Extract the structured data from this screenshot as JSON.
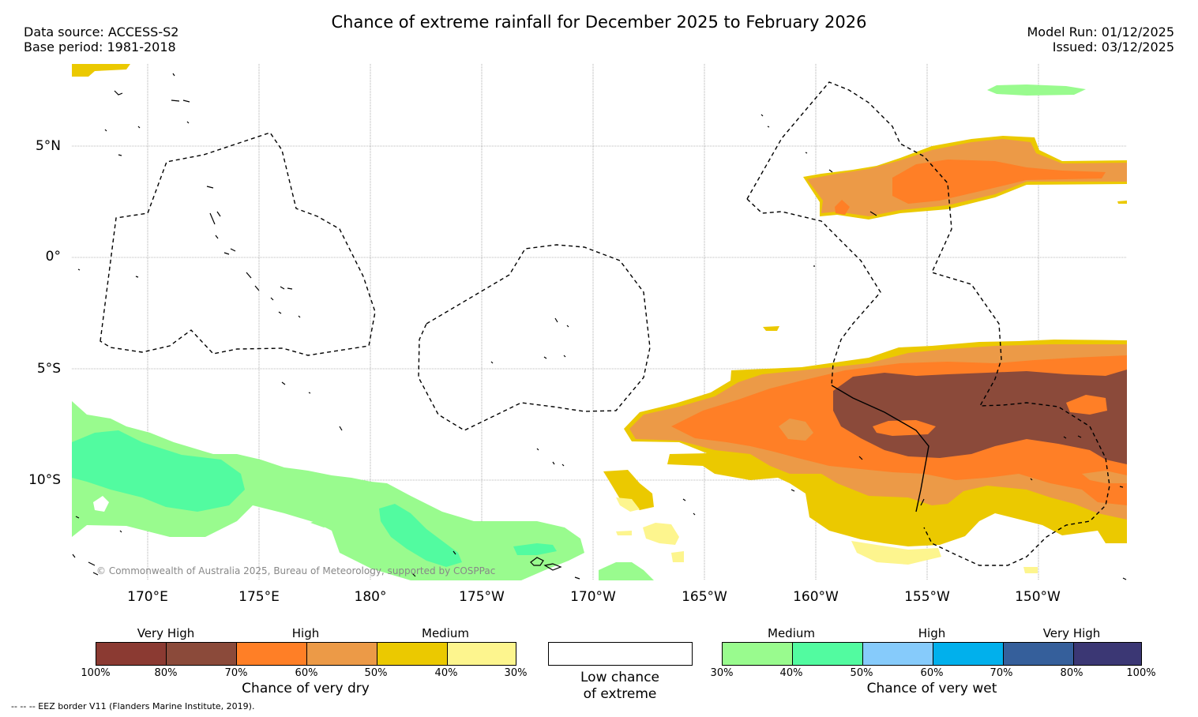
{
  "title": "Chance of extreme rainfall for December 2025 to February 2026",
  "header": {
    "data_source": "Data source: ACCESS-S2",
    "base_period": "Base period: 1981-2018",
    "model_run": "Model Run: 01/12/2025",
    "issued": "Issued: 03/12/2025"
  },
  "axes": {
    "lat_labels": [
      "5°N",
      "0°",
      "5°S",
      "10°S"
    ],
    "lon_labels": [
      "170°E",
      "175°E",
      "180°",
      "175°W",
      "170°W",
      "165°W",
      "160°W",
      "155°W",
      "150°W"
    ]
  },
  "copyright": "© Commonwealth of Australia 2025, Bureau of Meteorology, supported by COSPPac",
  "legend": {
    "dry": {
      "categories": [
        "Very High",
        "High",
        "Medium"
      ],
      "ticks": [
        "100%",
        "80%",
        "70%",
        "60%",
        "50%",
        "40%",
        "30%"
      ],
      "title": "Chance of very dry",
      "colors": [
        "#8b3a32",
        "#8b4a3a",
        "#ff7f26",
        "#ec9a47",
        "#ebc900",
        "#fdf58e"
      ]
    },
    "low": {
      "line1": "Low chance",
      "line2": "of extreme"
    },
    "wet": {
      "categories": [
        "Medium",
        "High",
        "Very High"
      ],
      "ticks": [
        "30%",
        "40%",
        "50%",
        "60%",
        "70%",
        "80%",
        "100%"
      ],
      "title": "Chance of very wet",
      "colors": [
        "#99fb8e",
        "#52fba0",
        "#86cbfb",
        "#01b0ec",
        "#355f9b",
        "#3b3774"
      ]
    }
  },
  "eez_note": "-- -- -- EEZ border V11 (Flanders Marine Institute, 2019)."
}
